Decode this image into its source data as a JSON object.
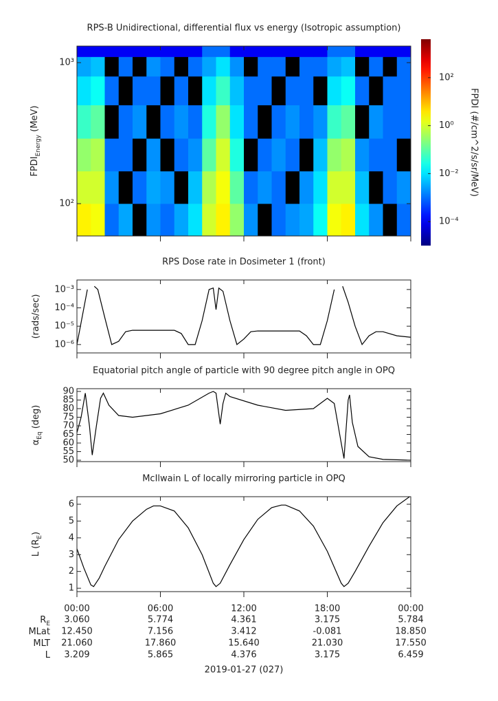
{
  "chart_data": [
    {
      "type": "heatmap",
      "title": "RPS-B  Unidirectional, differential flux vs energy (Isotropic assumption)",
      "ylabel": [
        {
          "text": "FPDI"
        },
        {
          "text": "Energy",
          "sub": true
        },
        {
          "text": " (MeV)"
        }
      ],
      "x": [
        0,
        1,
        2,
        3,
        4,
        5,
        6,
        7,
        8,
        9,
        10,
        11,
        12,
        13,
        14,
        15,
        16,
        17,
        18,
        19,
        20,
        21,
        22,
        23,
        24
      ],
      "y": [
        59,
        100,
        170,
        290,
        500,
        800,
        1100,
        1310
      ],
      "z": [
        [
          3,
          2,
          0.001,
          0.003,
          null,
          0.002,
          0.001,
          0.003,
          0.01,
          1,
          3,
          0.3,
          0.002,
          null,
          0.001,
          0.002,
          0.003,
          0.02,
          2,
          3,
          0.01,
          0.002,
          null,
          0.001
        ],
        [
          1,
          1,
          0.002,
          null,
          0.001,
          0.003,
          0.002,
          null,
          0.005,
          0.5,
          2,
          0.1,
          0.001,
          0.002,
          0.001,
          null,
          0.002,
          0.01,
          1,
          1,
          0.005,
          null,
          0.001,
          0.002
        ],
        [
          0.3,
          0.5,
          0.001,
          0.001,
          null,
          0.002,
          null,
          0.001,
          0.002,
          0.1,
          1,
          0.03,
          null,
          0.001,
          0.002,
          0.001,
          null,
          0.005,
          0.3,
          0.5,
          0.002,
          0.001,
          0.001,
          null
        ],
        [
          0.05,
          0.1,
          null,
          0.001,
          0.002,
          null,
          0.001,
          0.002,
          0.001,
          0.03,
          0.3,
          0.01,
          0.001,
          null,
          0.001,
          0.002,
          0.001,
          0.002,
          0.05,
          0.1,
          null,
          0.002,
          0.001,
          0.001
        ],
        [
          0.01,
          0.02,
          0.001,
          null,
          0.001,
          0.001,
          null,
          0.001,
          null,
          0.01,
          0.05,
          0.005,
          0.001,
          0.001,
          null,
          0.001,
          0.001,
          null,
          0.01,
          0.02,
          0.001,
          null,
          0.001,
          0.001
        ],
        [
          0.003,
          0.005,
          null,
          0.001,
          null,
          0.002,
          0.001,
          null,
          0.001,
          0.003,
          0.01,
          0.002,
          null,
          0.001,
          0.001,
          null,
          0.001,
          0.001,
          0.003,
          0.005,
          null,
          0.001,
          null,
          0.001
        ],
        [
          0.0001,
          0.0001,
          0.0001,
          0.0001,
          0.0001,
          0.0001,
          0.0001,
          0.0001,
          0.0001,
          0.001,
          0.001,
          0.0001,
          0.0001,
          0.0001,
          0.0001,
          0.0001,
          0.0001,
          0.0001,
          0.001,
          0.001,
          0.0001,
          0.0001,
          0.0001,
          0.0001
        ]
      ],
      "missing_color": "#000000",
      "xlim": [
        0,
        24
      ],
      "xticks": [
        0,
        6,
        12,
        18,
        24
      ],
      "ylim": [
        59,
        1310
      ],
      "ylog": true,
      "yticks": [
        {
          "value": 100,
          "label": "10²"
        },
        {
          "value": 1000,
          "label": "10³"
        }
      ],
      "zlim": [
        1e-05,
        4000
      ],
      "zlog": true,
      "colormap": "jet",
      "zticks": [
        {
          "value": 0.0001,
          "label": "10⁻⁴"
        },
        {
          "value": 0.01,
          "label": "10⁻²"
        },
        {
          "value": 1,
          "label": "10⁰"
        },
        {
          "value": 100,
          "label": "10²"
        }
      ],
      "colorbar_label": "FPDI (#/cm^2/s/sr/MeV)"
    },
    {
      "type": "line",
      "title": "RPS  Dose rate in Dosimeter 1 (front)",
      "ylabel": [
        {
          "text": "(rads/sec)"
        }
      ],
      "x": [
        0,
        0.5,
        0.75,
        1,
        1.25,
        1.5,
        2,
        2.5,
        3,
        3.5,
        4,
        5,
        6,
        7,
        7.5,
        8,
        8.5,
        9,
        9.5,
        9.8,
        10,
        10.2,
        10.5,
        11,
        11.5,
        12,
        12.5,
        13,
        14,
        15,
        16,
        16.5,
        17,
        17.5,
        18,
        18.5,
        18.75,
        19.1,
        19.5,
        20,
        20.5,
        21,
        21.5,
        22,
        23,
        24
      ],
      "values": [
        1e-06,
        0.0001,
        0.001,
        null,
        0.0015,
        0.001,
        3e-05,
        1e-06,
        1.5e-06,
        5e-06,
        6e-06,
        6e-06,
        6e-06,
        6e-06,
        4e-06,
        1e-06,
        1e-06,
        2e-05,
        0.001,
        0.0012,
        8e-05,
        0.0012,
        0.0008,
        2e-05,
        1e-06,
        2e-06,
        5e-06,
        5.5e-06,
        5.5e-06,
        5.5e-06,
        5.5e-06,
        3e-06,
        1e-06,
        1e-06,
        2e-05,
        0.001,
        null,
        0.0015,
        0.0002,
        1e-05,
        1e-06,
        3e-06,
        5e-06,
        5e-06,
        3e-06,
        2.5e-06
      ],
      "color": "#000000",
      "xlim": [
        0,
        24
      ],
      "xticks": [
        0,
        6,
        12,
        18,
        24
      ],
      "ylim": [
        3.5e-07,
        0.0033
      ],
      "ylog": true,
      "yticks": [
        {
          "value": 1e-06,
          "label": "10⁻⁶"
        },
        {
          "value": 1e-05,
          "label": "10⁻⁵"
        },
        {
          "value": 0.0001,
          "label": "10⁻⁴"
        },
        {
          "value": 0.001,
          "label": "10⁻³"
        }
      ]
    },
    {
      "type": "line",
      "title": "Equatorial pitch angle of particle with 90 degree pitch angle in OPQ",
      "ylabel": [
        {
          "text": "α"
        },
        {
          "text": "Eq",
          "sub": true
        },
        {
          "text": " (deg)"
        }
      ],
      "x": [
        0,
        0.3,
        0.6,
        0.9,
        1.1,
        1.4,
        1.7,
        1.9,
        2.3,
        3,
        4,
        6,
        8,
        9.5,
        9.8,
        10,
        10.1,
        10.3,
        10.5,
        10.7,
        11,
        13,
        15,
        17,
        18,
        18.5,
        19,
        19.2,
        19.5,
        19.6,
        19.8,
        20.2,
        21,
        22,
        24
      ],
      "values": [
        66,
        75,
        89,
        70,
        53,
        70,
        86,
        89,
        82,
        76,
        75,
        77,
        82,
        89,
        90,
        89,
        83,
        71,
        83,
        89,
        87,
        82,
        79,
        80,
        86,
        83,
        60,
        51,
        85,
        88,
        72,
        58,
        52,
        50.5,
        50
      ],
      "color": "#000000",
      "xlim": [
        0,
        24
      ],
      "xticks": [
        0,
        6,
        12,
        18,
        24
      ],
      "ylim": [
        49.2,
        91.6
      ],
      "yticks": [
        50,
        55,
        60,
        65,
        70,
        75,
        80,
        85,
        90
      ]
    },
    {
      "type": "line",
      "title": "McIlwain L of locally mirroring particle in OPQ",
      "ylabel": [
        {
          "text": "L (R"
        },
        {
          "text": "E",
          "sub": true
        },
        {
          "text": ")"
        }
      ],
      "x": [
        0,
        0.5,
        1,
        1.2,
        1.6,
        2,
        3,
        4,
        5,
        5.5,
        6,
        7,
        8,
        9,
        9.8,
        10,
        10.3,
        11,
        12,
        13,
        14,
        14.7,
        15,
        16,
        17,
        18,
        19,
        19.2,
        19.5,
        20,
        21,
        22,
        23,
        24
      ],
      "values": [
        3.35,
        2.2,
        1.2,
        1.1,
        1.6,
        2.3,
        3.9,
        5,
        5.7,
        5.9,
        5.9,
        5.6,
        4.6,
        3,
        1.3,
        1.1,
        1.3,
        2.4,
        3.9,
        5.1,
        5.8,
        5.95,
        5.95,
        5.6,
        4.7,
        3.2,
        1.3,
        1.1,
        1.3,
        2,
        3.5,
        4.9,
        5.9,
        6.5
      ],
      "color": "#000000",
      "xlim": [
        0,
        24
      ],
      "xticks": [
        {
          "value": 0,
          "label": "00:00"
        },
        {
          "value": 6,
          "label": "06:00"
        },
        {
          "value": 12,
          "label": "12:00"
        },
        {
          "value": 18,
          "label": "18:00"
        },
        {
          "value": 24,
          "label": "00:00"
        }
      ],
      "ylim": [
        0.8,
        6.45
      ],
      "yticks": [
        1,
        2,
        3,
        4,
        5,
        6
      ]
    }
  ],
  "ephemeris": {
    "rows": [
      {
        "label": [
          {
            "text": "R"
          },
          {
            "text": "E",
            "sub": true
          }
        ],
        "values": [
          "3.060",
          "5.774",
          "4.361",
          "3.175",
          "5.784"
        ]
      },
      {
        "label": [
          {
            "text": "MLat"
          }
        ],
        "values": [
          "12.450",
          "7.156",
          "3.412",
          "-0.081",
          "18.850"
        ]
      },
      {
        "label": [
          {
            "text": "MLT"
          }
        ],
        "values": [
          "21.060",
          "17.860",
          "15.640",
          "21.030",
          "17.550"
        ]
      },
      {
        "label": [
          {
            "text": "L"
          }
        ],
        "values": [
          "3.209",
          "5.865",
          "4.376",
          "3.175",
          "6.459"
        ]
      }
    ],
    "date": "2019-01-27 (027)"
  }
}
